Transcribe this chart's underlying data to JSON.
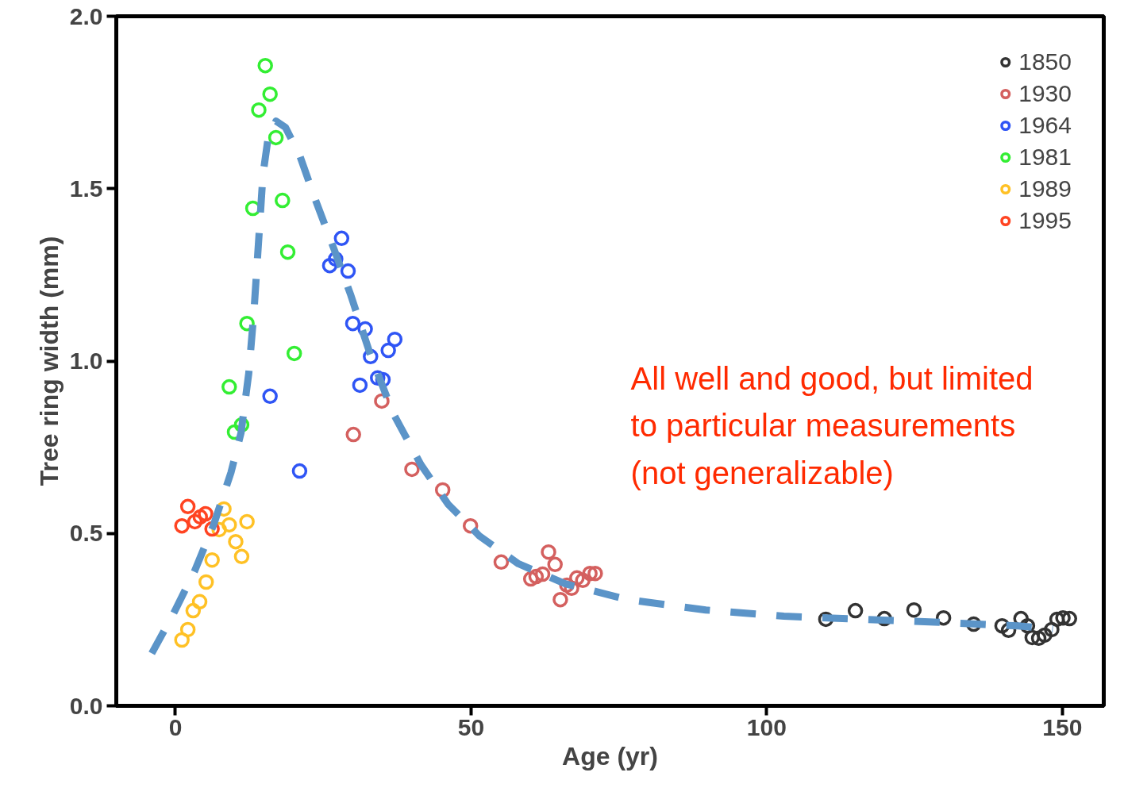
{
  "chart_data": {
    "type": "scatter",
    "xlabel": "Age (yr)",
    "ylabel": "Tree ring width (mm)",
    "xlim": [
      -10,
      157
    ],
    "ylim": [
      0,
      2
    ],
    "xticks": [
      0,
      50,
      100,
      150
    ],
    "yticks": [
      {
        "value": 0,
        "label": "0.0"
      },
      {
        "value": 0.5,
        "label": "0.5"
      },
      {
        "value": 1,
        "label": "1.0"
      },
      {
        "value": 1.5,
        "label": "1.5"
      },
      {
        "value": 2,
        "label": "2.0"
      }
    ],
    "grid": false,
    "legend": "top right",
    "marker": "circle",
    "annotations": [
      "All well and good, but limited\nto particular measurements\n(not generalizable)"
    ],
    "series": [
      {
        "name": "1850",
        "color": "#333333",
        "x": [
          110.0,
          115.0,
          119.9,
          124.9,
          129.9,
          135.0,
          139.8,
          140.9,
          143.0,
          144.1,
          144.9,
          146.0,
          147.0,
          148.2,
          149.1,
          150.1,
          151.2
        ],
        "values": [
          0.251,
          0.276,
          0.253,
          0.278,
          0.255,
          0.237,
          0.232,
          0.219,
          0.253,
          0.232,
          0.198,
          0.196,
          0.205,
          0.221,
          0.251,
          0.255,
          0.253
        ]
      },
      {
        "name": "1930",
        "color": "#d4605f",
        "x": [
          34.9,
          30.1,
          40.0,
          45.2,
          49.9,
          55.1,
          63.1,
          64.2,
          60.1,
          61.0,
          62.1,
          66.2,
          67.0,
          65.1,
          67.9,
          68.9,
          70.1,
          71.0
        ],
        "values": [
          0.884,
          0.787,
          0.686,
          0.626,
          0.522,
          0.417,
          0.446,
          0.41,
          0.368,
          0.375,
          0.382,
          0.35,
          0.341,
          0.308,
          0.371,
          0.364,
          0.384,
          0.384
        ]
      },
      {
        "name": "1964",
        "color": "#2f55f5",
        "x": [
          28.1,
          27.1,
          26.1,
          29.2,
          30.0,
          32.1,
          33.0,
          36.0,
          37.1,
          31.2,
          34.2,
          35.1,
          16.0,
          21.0
        ],
        "values": [
          1.356,
          1.296,
          1.277,
          1.261,
          1.109,
          1.093,
          1.013,
          1.031,
          1.063,
          0.93,
          0.951,
          0.946,
          0.898,
          0.681
        ]
      },
      {
        "name": "1981",
        "color": "#33ee33",
        "x": [
          15.2,
          16.0,
          14.1,
          17.0,
          13.1,
          18.1,
          19.0,
          12.1,
          20.1,
          9.1,
          11.2,
          10.0
        ],
        "values": [
          1.857,
          1.774,
          1.728,
          1.648,
          1.443,
          1.466,
          1.316,
          1.109,
          1.022,
          0.925,
          0.815,
          0.794
        ]
      },
      {
        "name": "1989",
        "color": "#ffc125",
        "x": [
          8.2,
          9.1,
          12.1,
          7.4,
          10.2,
          11.2,
          6.2,
          5.2,
          4.1,
          3.0,
          2.1,
          1.1
        ],
        "values": [
          0.571,
          0.525,
          0.534,
          0.511,
          0.476,
          0.433,
          0.423,
          0.359,
          0.302,
          0.276,
          0.221,
          0.191
        ]
      },
      {
        "name": "1995",
        "color": "#ff4422",
        "x": [
          2.1,
          1.1,
          3.3,
          4.2,
          5.1,
          6.2
        ],
        "values": [
          0.578,
          0.522,
          0.534,
          0.548,
          0.557,
          0.513
        ]
      },
      {
        "type": "line",
        "color": "#5b94c8",
        "line_style": "dashed",
        "marker": "none",
        "x": [
          -4.0,
          -0.4,
          3.2,
          6.5,
          9.4,
          11.1,
          12.4,
          13.3,
          14.1,
          14.8,
          15.7,
          17.0,
          18.6,
          21.0,
          23.6,
          26.9,
          29.6,
          32.9,
          36.8,
          41.5,
          46.1,
          51.4,
          58.0,
          65.9,
          76.5,
          89.7,
          102.9,
          116.1,
          129.3,
          142.5,
          148.4
        ],
        "values": [
          0.152,
          0.265,
          0.389,
          0.527,
          0.677,
          0.792,
          0.964,
          1.148,
          1.356,
          1.54,
          1.65,
          1.696,
          1.678,
          1.597,
          1.471,
          1.321,
          1.194,
          1.022,
          0.849,
          0.7,
          0.585,
          0.493,
          0.412,
          0.354,
          0.308,
          0.278,
          0.26,
          0.251,
          0.242,
          0.232,
          0.223
        ]
      }
    ]
  }
}
